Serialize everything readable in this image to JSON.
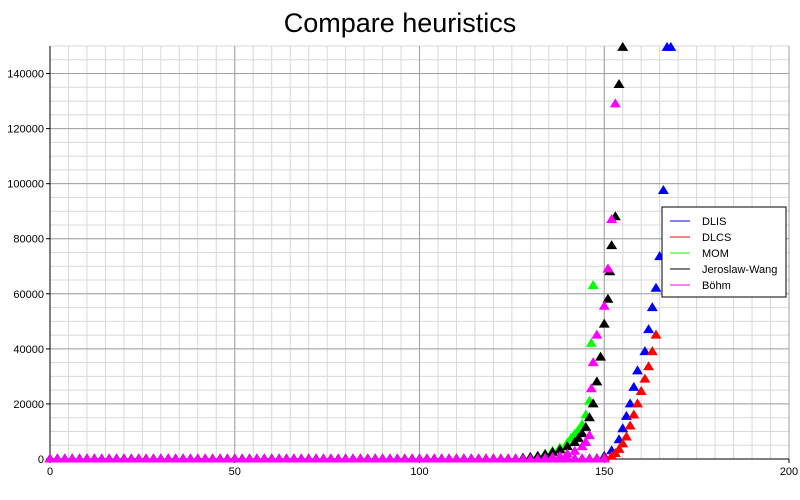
{
  "chart_data": {
    "type": "scatter",
    "title": "Compare heuristics",
    "xlabel": "",
    "ylabel": "",
    "xlim": [
      0,
      200
    ],
    "ylim": [
      0,
      150000
    ],
    "x_ticks": [
      0,
      50,
      100,
      150,
      200
    ],
    "y_ticks": [
      0,
      20000,
      40000,
      60000,
      80000,
      100000,
      120000,
      140000
    ],
    "grid": true,
    "legend_position": "right",
    "marker": "triangle-up",
    "series": [
      {
        "name": "DLIS",
        "color": "#0000ff",
        "points": [
          [
            150,
            1000
          ],
          [
            152,
            3000
          ],
          [
            154,
            7000
          ],
          [
            155,
            11000
          ],
          [
            156,
            15500
          ],
          [
            157,
            20000
          ],
          [
            158,
            26000
          ],
          [
            159,
            32000
          ],
          [
            161,
            39000
          ],
          [
            162,
            47000
          ],
          [
            163,
            55000
          ],
          [
            164,
            62000
          ],
          [
            165,
            73500
          ],
          [
            166,
            97500
          ],
          [
            167,
            149500
          ],
          [
            168,
            149500
          ]
        ]
      },
      {
        "name": "DLCS",
        "color": "#ff0000",
        "points": [
          [
            148,
            200
          ],
          [
            150,
            500
          ],
          [
            152,
            1000
          ],
          [
            153,
            2000
          ],
          [
            154,
            3500
          ],
          [
            155,
            5500
          ],
          [
            156,
            8000
          ],
          [
            157,
            12000
          ],
          [
            158,
            16000
          ],
          [
            159,
            20000
          ],
          [
            160,
            24500
          ],
          [
            161,
            29000
          ],
          [
            162,
            33500
          ],
          [
            163,
            39000
          ],
          [
            164,
            45000
          ]
        ]
      },
      {
        "name": "MOM",
        "color": "#00ff00",
        "points": [
          [
            128,
            300
          ],
          [
            130,
            600
          ],
          [
            132,
            1000
          ],
          [
            134,
            1800
          ],
          [
            136,
            2800
          ],
          [
            138,
            4000
          ],
          [
            140,
            5800
          ],
          [
            141,
            7500
          ],
          [
            142,
            9000
          ],
          [
            143,
            10500
          ],
          [
            144,
            12500
          ],
          [
            145,
            16000
          ],
          [
            146,
            21000
          ],
          [
            146.5,
            42000
          ],
          [
            147,
            63000
          ]
        ]
      },
      {
        "name": "Jeroslaw-Wang",
        "color": "#000000",
        "points": [
          [
            128,
            300
          ],
          [
            130,
            600
          ],
          [
            132,
            1000
          ],
          [
            134,
            1600
          ],
          [
            136,
            2400
          ],
          [
            138,
            3300
          ],
          [
            140,
            4500
          ],
          [
            142,
            6000
          ],
          [
            143,
            7500
          ],
          [
            144,
            9200
          ],
          [
            145,
            11500
          ],
          [
            146,
            15000
          ],
          [
            147,
            20000
          ],
          [
            148,
            28000
          ],
          [
            149,
            37000
          ],
          [
            150,
            49000
          ],
          [
            151,
            58000
          ],
          [
            151.5,
            68000
          ],
          [
            152,
            77500
          ],
          [
            153,
            88000
          ],
          [
            154,
            136000
          ],
          [
            155,
            149500
          ]
        ]
      },
      {
        "name": "Böhm",
        "color": "#ff00ff",
        "points": [
          [
            134,
            300
          ],
          [
            136,
            600
          ],
          [
            138,
            1000
          ],
          [
            140,
            1800
          ],
          [
            142,
            2800
          ],
          [
            144,
            4500
          ],
          [
            145,
            6000
          ],
          [
            146,
            8500
          ],
          [
            146.5,
            25500
          ],
          [
            147,
            35000
          ],
          [
            148,
            45000
          ],
          [
            150,
            55500
          ],
          [
            151,
            69000
          ],
          [
            152,
            87000
          ],
          [
            153,
            129000
          ]
        ]
      }
    ]
  }
}
